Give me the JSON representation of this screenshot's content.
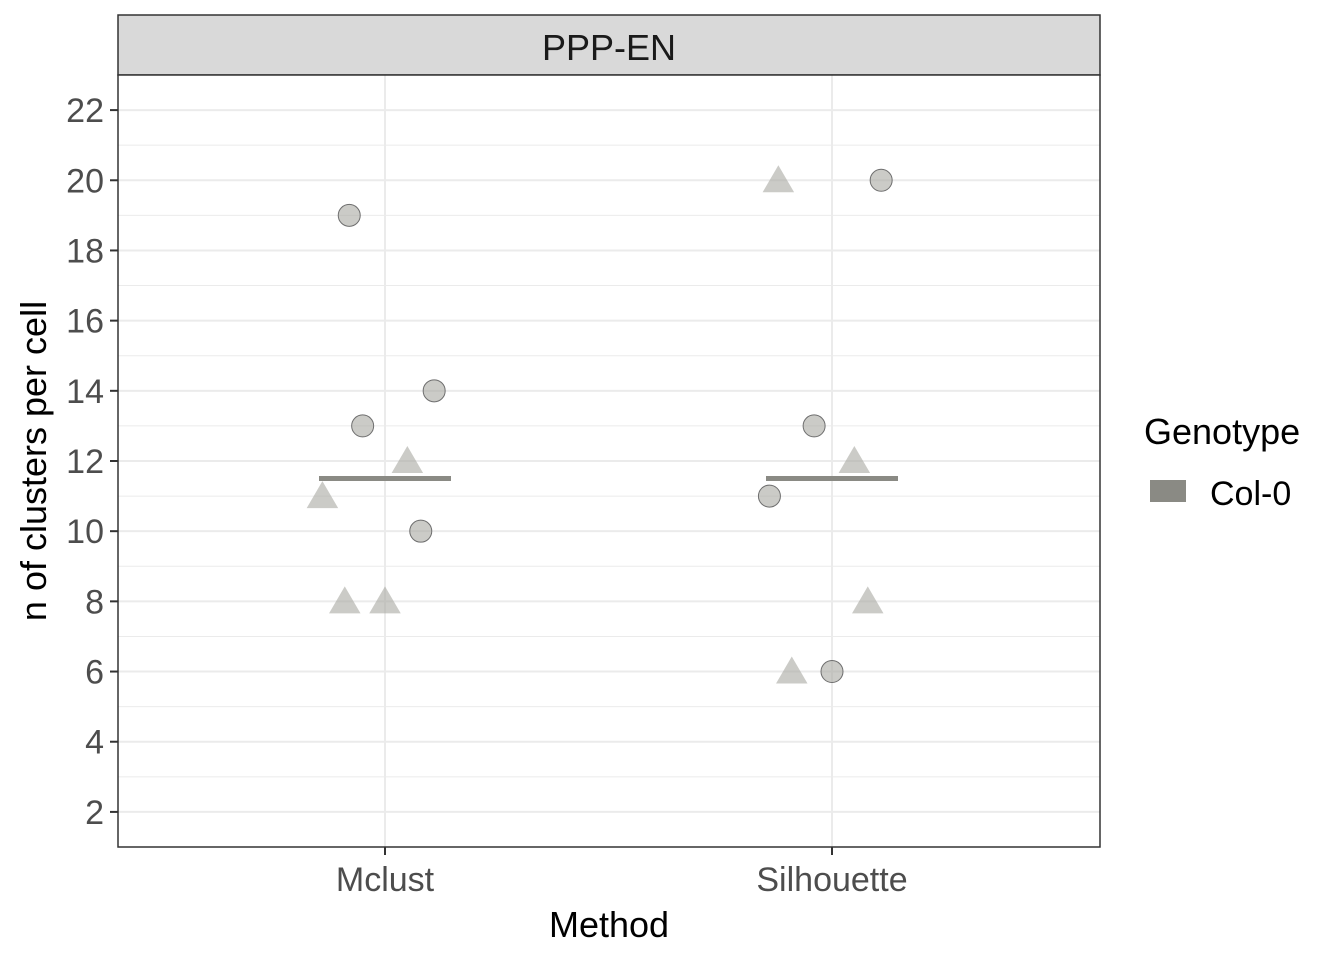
{
  "chart_data": {
    "type": "scatter",
    "facet": "PPP-EN",
    "xlabel": "Method",
    "ylabel": "n of clusters per cell",
    "categories": [
      "Mclust",
      "Silhouette"
    ],
    "ylim": [
      1,
      23
    ],
    "yticks": [
      2,
      4,
      6,
      8,
      10,
      12,
      14,
      16,
      18,
      20,
      22
    ],
    "grid": true,
    "legend": {
      "title": "Genotype",
      "position": "right",
      "entries": [
        {
          "label": "Col-0",
          "color": "#8a8a84"
        }
      ]
    },
    "points": [
      {
        "category": "Mclust",
        "jitter": -0.08,
        "y": 19,
        "shape": "circle"
      },
      {
        "category": "Mclust",
        "jitter": 0.11,
        "y": 14,
        "shape": "circle"
      },
      {
        "category": "Mclust",
        "jitter": -0.05,
        "y": 13,
        "shape": "circle"
      },
      {
        "category": "Mclust",
        "jitter": 0.08,
        "y": 10,
        "shape": "circle"
      },
      {
        "category": "Mclust",
        "jitter": 0.05,
        "y": 12,
        "shape": "triangle"
      },
      {
        "category": "Mclust",
        "jitter": -0.14,
        "y": 11,
        "shape": "triangle"
      },
      {
        "category": "Mclust",
        "jitter": -0.09,
        "y": 8,
        "shape": "triangle"
      },
      {
        "category": "Mclust",
        "jitter": 0.0,
        "y": 8,
        "shape": "triangle"
      },
      {
        "category": "Silhouette",
        "jitter": 0.11,
        "y": 20,
        "shape": "circle"
      },
      {
        "category": "Silhouette",
        "jitter": -0.04,
        "y": 13,
        "shape": "circle"
      },
      {
        "category": "Silhouette",
        "jitter": -0.14,
        "y": 11,
        "shape": "circle"
      },
      {
        "category": "Silhouette",
        "jitter": 0.0,
        "y": 6,
        "shape": "circle"
      },
      {
        "category": "Silhouette",
        "jitter": -0.12,
        "y": 20,
        "shape": "triangle"
      },
      {
        "category": "Silhouette",
        "jitter": 0.05,
        "y": 12,
        "shape": "triangle"
      },
      {
        "category": "Silhouette",
        "jitter": 0.08,
        "y": 8,
        "shape": "triangle"
      },
      {
        "category": "Silhouette",
        "jitter": -0.09,
        "y": 6,
        "shape": "triangle"
      }
    ],
    "means": [
      {
        "category": "Mclust",
        "y": 11.5
      },
      {
        "category": "Silhouette",
        "y": 11.5
      }
    ],
    "colors": {
      "point_fill": "#a8a8a2",
      "point_stroke": "#6e6e6e",
      "mean_line": "#8a8a84",
      "strip_bg": "#d9d9d9",
      "grid": "#ebebeb"
    }
  }
}
